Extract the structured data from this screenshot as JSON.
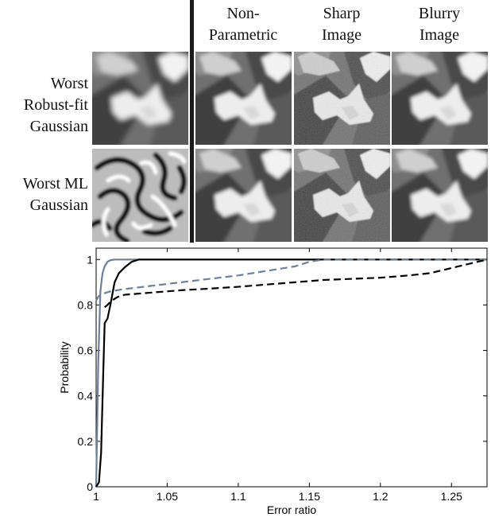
{
  "columns": [
    "Non-\nParametric",
    "Sharp\nImage",
    "Blurry\nImage"
  ],
  "rows": [
    "Worst\nRobust-fit\nGaussian",
    "Worst ML\nGaussian"
  ],
  "chart_data": {
    "type": "line",
    "xlabel": "Error ratio",
    "ylabel": "Probability",
    "xlim": [
      1.0,
      1.275
    ],
    "ylim": [
      0,
      1.05
    ],
    "xticks": [
      1,
      1.05,
      1.1,
      1.15,
      1.2,
      1.25
    ],
    "xtick_labels": [
      "1",
      "1.05",
      "1.1",
      "1.15",
      "1.2",
      "1.25"
    ],
    "yticks": [
      0,
      0.2,
      0.4,
      0.6,
      0.8,
      1
    ],
    "ytick_labels": [
      "0",
      "0.2",
      "0.4",
      "0.6",
      "0.8",
      "1"
    ],
    "grid": false,
    "series": [
      {
        "color": "#6e7f96",
        "style": "solid",
        "x": [
          1.0,
          1.0015,
          1.003,
          1.0045,
          1.006,
          1.008,
          1.01,
          1.013,
          1.02,
          1.275
        ],
        "y": [
          0.0,
          0.55,
          0.86,
          0.94,
          0.97,
          0.99,
          0.997,
          1.0,
          1.0,
          1.0
        ]
      },
      {
        "color": "#000000",
        "style": "solid",
        "x": [
          1.0,
          1.002,
          1.0035,
          1.005,
          1.006,
          1.008,
          1.01,
          1.013,
          1.016,
          1.02,
          1.025,
          1.03,
          1.275
        ],
        "y": [
          0.0,
          0.02,
          0.15,
          0.5,
          0.72,
          0.74,
          0.8,
          0.9,
          0.94,
          0.965,
          0.99,
          1.0,
          1.0
        ]
      },
      {
        "color": "#6e7f96",
        "style": "dashed",
        "x": [
          1.0,
          1.002,
          1.005,
          1.01,
          1.02,
          1.04,
          1.06,
          1.08,
          1.1,
          1.12,
          1.14,
          1.15,
          1.16,
          1.2,
          1.25,
          1.275
        ],
        "y": [
          0.82,
          0.84,
          0.85,
          0.86,
          0.87,
          0.885,
          0.9,
          0.915,
          0.93,
          0.95,
          0.97,
          0.99,
          1.0,
          1.0,
          1.0,
          1.0
        ]
      },
      {
        "color": "#000000",
        "style": "dashed",
        "x": [
          1.006,
          1.008,
          1.01,
          1.015,
          1.02,
          1.04,
          1.06,
          1.08,
          1.1,
          1.12,
          1.14,
          1.16,
          1.18,
          1.2,
          1.22,
          1.235,
          1.245,
          1.255,
          1.265,
          1.272,
          1.275
        ],
        "y": [
          0.79,
          0.8,
          0.815,
          0.835,
          0.845,
          0.855,
          0.865,
          0.872,
          0.88,
          0.89,
          0.9,
          0.91,
          0.915,
          0.92,
          0.93,
          0.94,
          0.955,
          0.97,
          0.985,
          0.995,
          1.0
        ]
      }
    ]
  },
  "colors": {
    "gray_series": "#6e7f96",
    "black_series": "#000000"
  }
}
